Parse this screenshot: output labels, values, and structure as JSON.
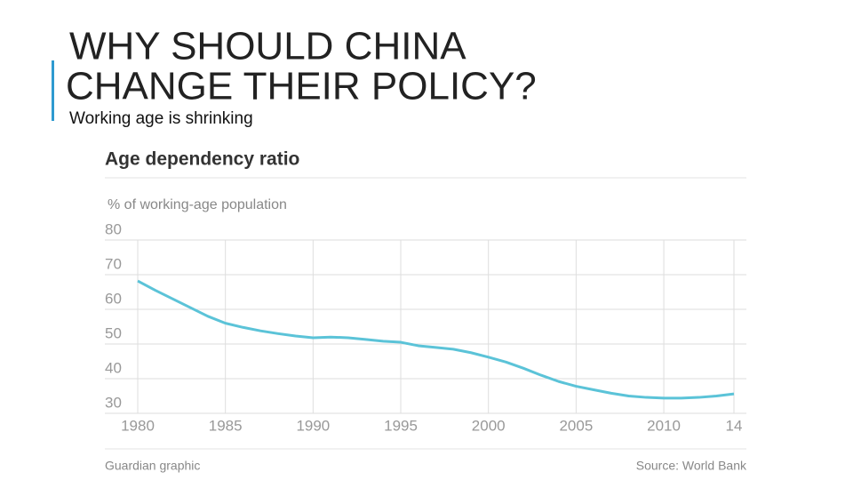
{
  "slide": {
    "title_lines": [
      "WHY SHOULD CHINA",
      "CHANGE THEIR POLICY?"
    ],
    "subtitle": "Working age is shrinking"
  },
  "chart_data": {
    "type": "line",
    "title": "Age dependency ratio",
    "y_label": "% of working-age population",
    "x": [
      1980,
      1981,
      1982,
      1983,
      1984,
      1985,
      1986,
      1987,
      1988,
      1989,
      1990,
      1991,
      1992,
      1993,
      1994,
      1995,
      1996,
      1997,
      1998,
      1999,
      2000,
      2001,
      2002,
      2003,
      2004,
      2005,
      2006,
      2007,
      2008,
      2009,
      2010,
      2011,
      2012,
      2013,
      2014
    ],
    "values": [
      68.2,
      65.5,
      63,
      60.5,
      58,
      56,
      54.8,
      53.8,
      53,
      52.3,
      51.8,
      52,
      51.8,
      51.3,
      50.8,
      50.5,
      49.5,
      49,
      48.5,
      47.5,
      46.2,
      44.8,
      43,
      41,
      39.2,
      37.8,
      36.8,
      35.8,
      35,
      34.6,
      34.4,
      34.4,
      34.6,
      35,
      35.6
    ],
    "color": "#5bc3d8",
    "xlim": [
      1980,
      2014
    ],
    "ylim": [
      30,
      80
    ],
    "xticks": [
      1980,
      1985,
      1990,
      1995,
      2000,
      2005,
      2010,
      {
        "value": 2014,
        "label": "14"
      }
    ],
    "yticks": [
      30,
      40,
      50,
      60,
      70,
      80
    ],
    "grid": true,
    "credit": "Guardian graphic",
    "source": "Source: World Bank"
  }
}
